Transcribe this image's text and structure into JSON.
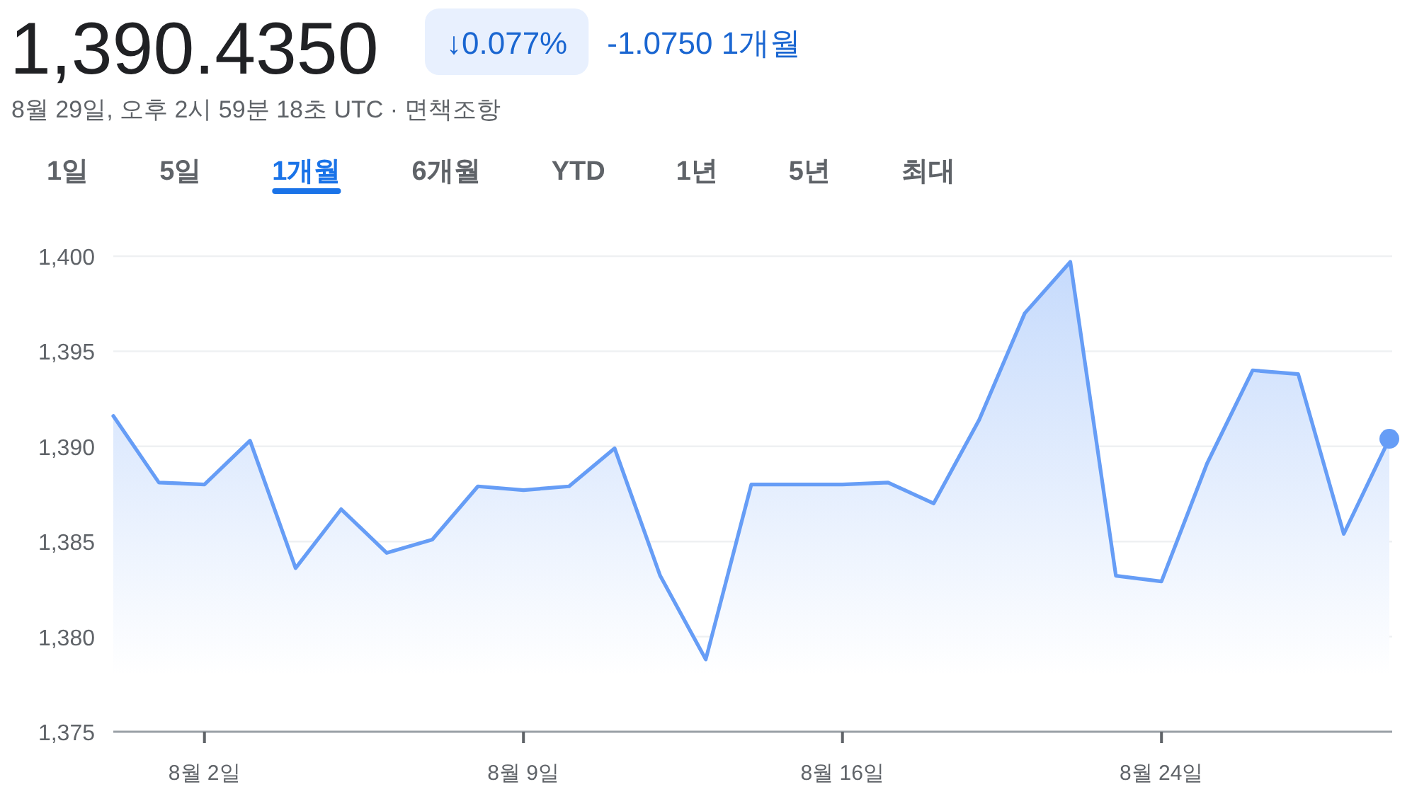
{
  "chart_data": {
    "type": "area",
    "title": "1,390.4350",
    "subtitle": "8월 29일, 오후 2시 59분 18초 UTC · 면책조항",
    "annotations": [
      "↓0.077%",
      "-1.0750 1개월",
      "1일",
      "5일",
      "1개월",
      "6개월",
      "YTD",
      "1년",
      "5년",
      "최대"
    ],
    "categories": [
      null,
      null,
      "8월 2일",
      null,
      null,
      null,
      null,
      null,
      null,
      "8월 9일",
      null,
      null,
      null,
      null,
      null,
      null,
      "8월 16일",
      null,
      null,
      null,
      null,
      null,
      null,
      "8월 24일",
      null,
      null,
      null,
      null,
      null
    ],
    "series": [
      {
        "color": "#669df6",
        "values": [
          1391.6,
          1388.1,
          1388.0,
          1390.3,
          1383.6,
          1386.7,
          1384.4,
          1385.1,
          1387.9,
          1387.7,
          1387.9,
          1389.9,
          1383.2,
          1378.8,
          1388.0,
          1388.0,
          1388.0,
          1388.1,
          1387.0,
          1391.4,
          1397.0,
          1399.7,
          1383.2,
          1382.9,
          1389.1,
          1394.0,
          1393.8,
          1385.4,
          1390.4
        ]
      },
      {
        "type": "scatter",
        "color": "#669df6",
        "values": [
          null,
          null,
          null,
          null,
          null,
          null,
          null,
          null,
          null,
          null,
          null,
          null,
          null,
          null,
          null,
          null,
          null,
          null,
          null,
          null,
          null,
          null,
          null,
          null,
          null,
          null,
          null,
          null,
          1390.4
        ]
      }
    ],
    "ylim": [
      1375,
      1400
    ],
    "yticks": [
      {
        "value": 1375,
        "label": "1,375"
      },
      {
        "value": 1380,
        "label": "1,380"
      },
      {
        "value": 1385,
        "label": "1,385"
      },
      {
        "value": 1390,
        "label": "1,390"
      },
      {
        "value": 1395,
        "label": "1,395"
      },
      {
        "value": 1400,
        "label": "1,400"
      }
    ],
    "grid": "y"
  }
}
